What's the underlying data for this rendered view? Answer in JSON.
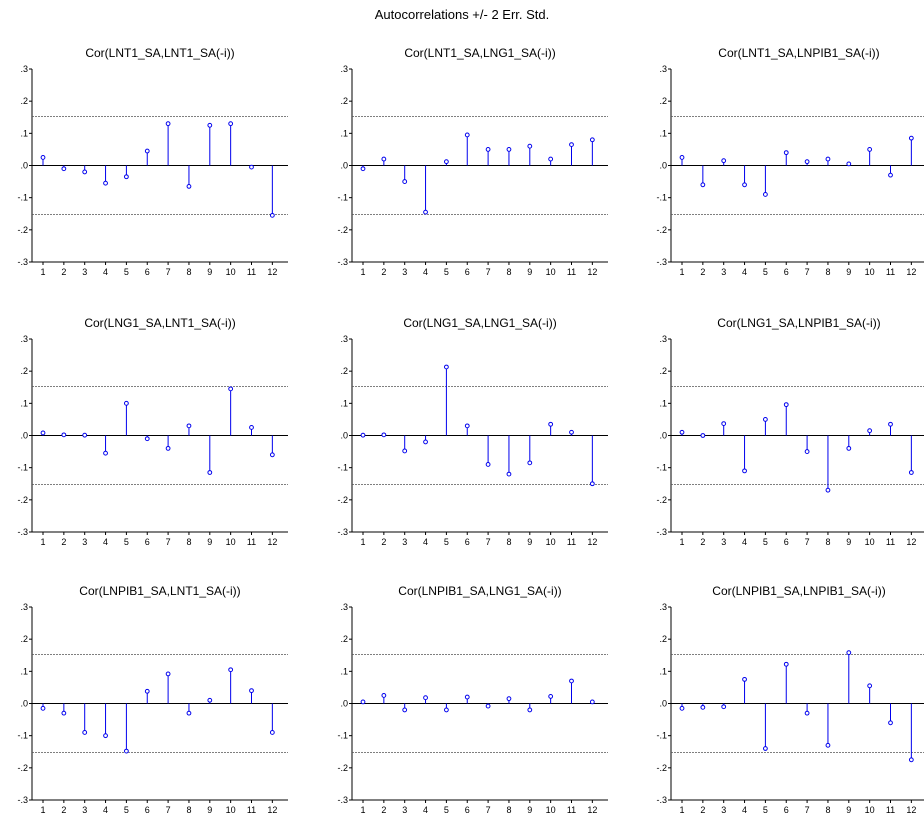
{
  "title": "Autocorrelations +/- 2 Err. Std.",
  "colors": {
    "series": "#0000ee",
    "axis": "#000000",
    "band": "#555555"
  },
  "chart_data": [
    {
      "type": "stem",
      "title": "Cor(LNT1_SA,LNT1_SA(-i))",
      "x": [
        1,
        2,
        3,
        4,
        5,
        6,
        7,
        8,
        9,
        10,
        11,
        12
      ],
      "values": [
        0.025,
        -0.01,
        -0.02,
        -0.055,
        -0.035,
        0.045,
        0.13,
        -0.065,
        0.125,
        0.13,
        -0.005,
        -0.155
      ],
      "ylim": [
        -0.3,
        0.3
      ],
      "yticks": [
        ".3",
        ".2",
        ".1",
        ".0",
        "-.1",
        "-.2",
        "-.3"
      ],
      "band": 0.152
    },
    {
      "type": "stem",
      "title": "Cor(LNT1_SA,LNG1_SA(-i))",
      "x": [
        1,
        2,
        3,
        4,
        5,
        6,
        7,
        8,
        9,
        10,
        11,
        12
      ],
      "values": [
        -0.01,
        0.02,
        -0.05,
        -0.145,
        0.012,
        0.095,
        0.05,
        0.05,
        0.06,
        0.02,
        0.065,
        0.08
      ],
      "ylim": [
        -0.3,
        0.3
      ],
      "yticks": [
        ".3",
        ".2",
        ".1",
        ".0",
        "-.1",
        "-.2",
        "-.3"
      ],
      "band": 0.152
    },
    {
      "type": "stem",
      "title": "Cor(LNT1_SA,LNPIB1_SA(-i))",
      "x": [
        1,
        2,
        3,
        4,
        5,
        6,
        7,
        8,
        9,
        10,
        11,
        12
      ],
      "values": [
        0.025,
        -0.06,
        0.015,
        -0.06,
        -0.09,
        0.04,
        0.012,
        0.02,
        0.005,
        0.05,
        -0.03,
        0.085
      ],
      "ylim": [
        -0.3,
        0.3
      ],
      "yticks": [
        ".3",
        ".2",
        ".1",
        ".0",
        "-.1",
        "-.2",
        "-.3"
      ],
      "band": 0.152
    },
    {
      "type": "stem",
      "title": "Cor(LNG1_SA,LNT1_SA(-i))",
      "x": [
        1,
        2,
        3,
        4,
        5,
        6,
        7,
        8,
        9,
        10,
        11,
        12
      ],
      "values": [
        0.008,
        0.002,
        0.001,
        -0.055,
        0.1,
        -0.01,
        -0.04,
        0.03,
        -0.115,
        0.145,
        0.025,
        -0.06
      ],
      "ylim": [
        -0.3,
        0.3
      ],
      "yticks": [
        ".3",
        ".2",
        ".1",
        ".0",
        "-.1",
        "-.2",
        "-.3"
      ],
      "band": 0.152
    },
    {
      "type": "stem",
      "title": "Cor(LNG1_SA,LNG1_SA(-i))",
      "x": [
        1,
        2,
        3,
        4,
        5,
        6,
        7,
        8,
        9,
        10,
        11,
        12
      ],
      "values": [
        0.001,
        0.002,
        -0.048,
        -0.02,
        0.213,
        0.03,
        -0.09,
        -0.12,
        -0.085,
        0.035,
        0.01,
        -0.15
      ],
      "ylim": [
        -0.3,
        0.3
      ],
      "yticks": [
        ".3",
        ".2",
        ".1",
        ".0",
        "-.1",
        "-.2",
        "-.3"
      ],
      "band": 0.152
    },
    {
      "type": "stem",
      "title": "Cor(LNG1_SA,LNPIB1_SA(-i))",
      "x": [
        1,
        2,
        3,
        4,
        5,
        6,
        7,
        8,
        9,
        10,
        11,
        12
      ],
      "values": [
        0.01,
        0.0,
        0.037,
        -0.11,
        0.05,
        0.096,
        -0.05,
        -0.17,
        -0.04,
        0.015,
        0.035,
        -0.115
      ],
      "ylim": [
        -0.3,
        0.3
      ],
      "yticks": [
        ".3",
        ".2",
        ".1",
        ".0",
        "-.1",
        "-.2",
        "-.3"
      ],
      "band": 0.152
    },
    {
      "type": "stem",
      "title": "Cor(LNPIB1_SA,LNT1_SA(-i))",
      "x": [
        1,
        2,
        3,
        4,
        5,
        6,
        7,
        8,
        9,
        10,
        11,
        12
      ],
      "values": [
        -0.015,
        -0.03,
        -0.09,
        -0.1,
        -0.148,
        0.038,
        0.092,
        -0.03,
        0.01,
        0.105,
        0.04,
        -0.09
      ],
      "ylim": [
        -0.3,
        0.3
      ],
      "yticks": [
        ".3",
        ".2",
        ".1",
        ".0",
        "-.1",
        "-.2",
        "-.3"
      ],
      "band": 0.152
    },
    {
      "type": "stem",
      "title": "Cor(LNPIB1_SA,LNG1_SA(-i))",
      "x": [
        1,
        2,
        3,
        4,
        5,
        6,
        7,
        8,
        9,
        10,
        11,
        12
      ],
      "values": [
        0.005,
        0.025,
        -0.02,
        0.018,
        -0.02,
        0.02,
        -0.008,
        0.015,
        -0.02,
        0.022,
        0.07,
        0.005
      ],
      "ylim": [
        -0.3,
        0.3
      ],
      "yticks": [
        ".3",
        ".2",
        ".1",
        ".0",
        "-.1",
        "-.2",
        "-.3"
      ],
      "band": 0.152
    },
    {
      "type": "stem",
      "title": "Cor(LNPIB1_SA,LNPIB1_SA(-i))",
      "x": [
        1,
        2,
        3,
        4,
        5,
        6,
        7,
        8,
        9,
        10,
        11,
        12
      ],
      "values": [
        -0.015,
        -0.012,
        -0.01,
        0.075,
        -0.14,
        0.122,
        -0.03,
        -0.13,
        0.158,
        0.055,
        -0.06,
        -0.175
      ],
      "ylim": [
        -0.3,
        0.3
      ],
      "yticks": [
        ".3",
        ".2",
        ".1",
        ".0",
        "-.1",
        "-.2",
        "-.3"
      ],
      "band": 0.152
    }
  ]
}
